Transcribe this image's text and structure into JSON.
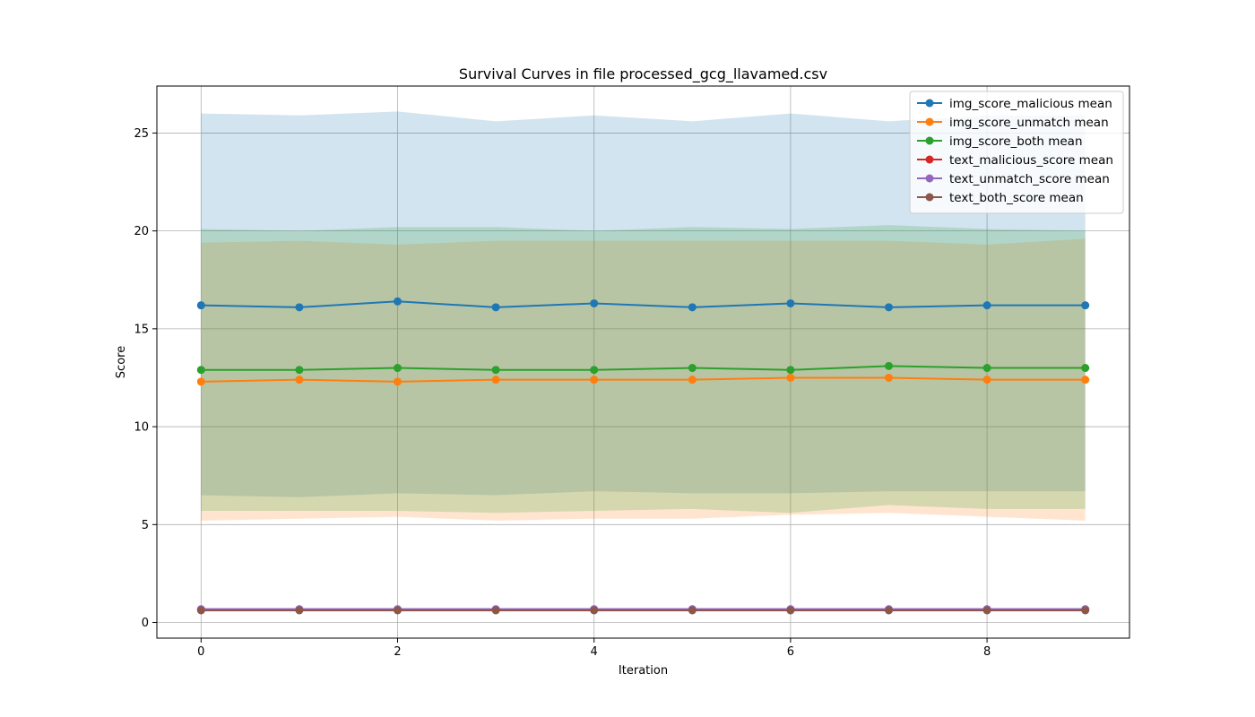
{
  "chart_data": {
    "type": "line",
    "title": "Survival Curves in file processed_gcg_llavamed.csv",
    "xlabel": "Iteration",
    "ylabel": "Score",
    "xlim": [
      -0.45,
      9.45
    ],
    "ylim": [
      -0.8,
      27.4
    ],
    "xticks": [
      0,
      2,
      4,
      6,
      8
    ],
    "yticks": [
      0,
      5,
      10,
      15,
      20,
      25
    ],
    "grid": true,
    "legend_position": "top-right",
    "x": [
      0,
      1,
      2,
      3,
      4,
      5,
      6,
      7,
      8,
      9
    ],
    "series": [
      {
        "name": "img_score_malicious mean",
        "color": "#1f77b4",
        "values": [
          16.2,
          16.1,
          16.4,
          16.1,
          16.3,
          16.1,
          16.3,
          16.1,
          16.2,
          16.2
        ],
        "band_upper": [
          26.0,
          25.9,
          26.1,
          25.6,
          25.9,
          25.6,
          26.0,
          25.6,
          25.9,
          25.9
        ],
        "band_lower": [
          6.5,
          6.4,
          6.6,
          6.5,
          6.7,
          6.6,
          6.6,
          6.7,
          6.7,
          6.7
        ]
      },
      {
        "name": "img_score_unmatch mean",
        "color": "#ff7f0e",
        "values": [
          12.3,
          12.4,
          12.3,
          12.4,
          12.4,
          12.4,
          12.5,
          12.5,
          12.4,
          12.4
        ],
        "band_upper": [
          19.4,
          19.5,
          19.3,
          19.5,
          19.5,
          19.5,
          19.5,
          19.5,
          19.3,
          19.6
        ],
        "band_lower": [
          5.2,
          5.3,
          5.4,
          5.2,
          5.3,
          5.3,
          5.5,
          5.6,
          5.4,
          5.2
        ]
      },
      {
        "name": "img_score_both mean",
        "color": "#2ca02c",
        "values": [
          12.9,
          12.9,
          13.0,
          12.9,
          12.9,
          13.0,
          12.9,
          13.1,
          13.0,
          13.0
        ],
        "band_upper": [
          20.1,
          20.0,
          20.2,
          20.2,
          20.0,
          20.2,
          20.1,
          20.3,
          20.1,
          20.0
        ],
        "band_lower": [
          5.7,
          5.7,
          5.7,
          5.6,
          5.7,
          5.8,
          5.6,
          6.0,
          5.8,
          5.8
        ]
      },
      {
        "name": "text_malicious_score mean",
        "color": "#d62728",
        "values": [
          0.65,
          0.65,
          0.65,
          0.65,
          0.65,
          0.65,
          0.65,
          0.65,
          0.65,
          0.65
        ],
        "band_upper": [
          0.72,
          0.72,
          0.72,
          0.72,
          0.72,
          0.72,
          0.72,
          0.72,
          0.72,
          0.72
        ],
        "band_lower": [
          0.58,
          0.58,
          0.58,
          0.58,
          0.58,
          0.58,
          0.58,
          0.58,
          0.58,
          0.58
        ]
      },
      {
        "name": "text_unmatch_score mean",
        "color": "#9467bd",
        "values": [
          0.68,
          0.68,
          0.68,
          0.68,
          0.68,
          0.68,
          0.68,
          0.68,
          0.68,
          0.68
        ],
        "band_upper": [
          0.74,
          0.74,
          0.74,
          0.74,
          0.74,
          0.74,
          0.74,
          0.74,
          0.74,
          0.74
        ],
        "band_lower": [
          0.62,
          0.62,
          0.62,
          0.62,
          0.62,
          0.62,
          0.62,
          0.62,
          0.62,
          0.62
        ]
      },
      {
        "name": "text_both_score mean",
        "color": "#8c564b",
        "values": [
          0.62,
          0.62,
          0.62,
          0.62,
          0.62,
          0.62,
          0.62,
          0.62,
          0.62,
          0.62
        ],
        "band_upper": [
          0.68,
          0.68,
          0.68,
          0.68,
          0.68,
          0.68,
          0.68,
          0.68,
          0.68,
          0.68
        ],
        "band_lower": [
          0.56,
          0.56,
          0.56,
          0.56,
          0.56,
          0.56,
          0.56,
          0.56,
          0.56,
          0.56
        ]
      }
    ]
  }
}
